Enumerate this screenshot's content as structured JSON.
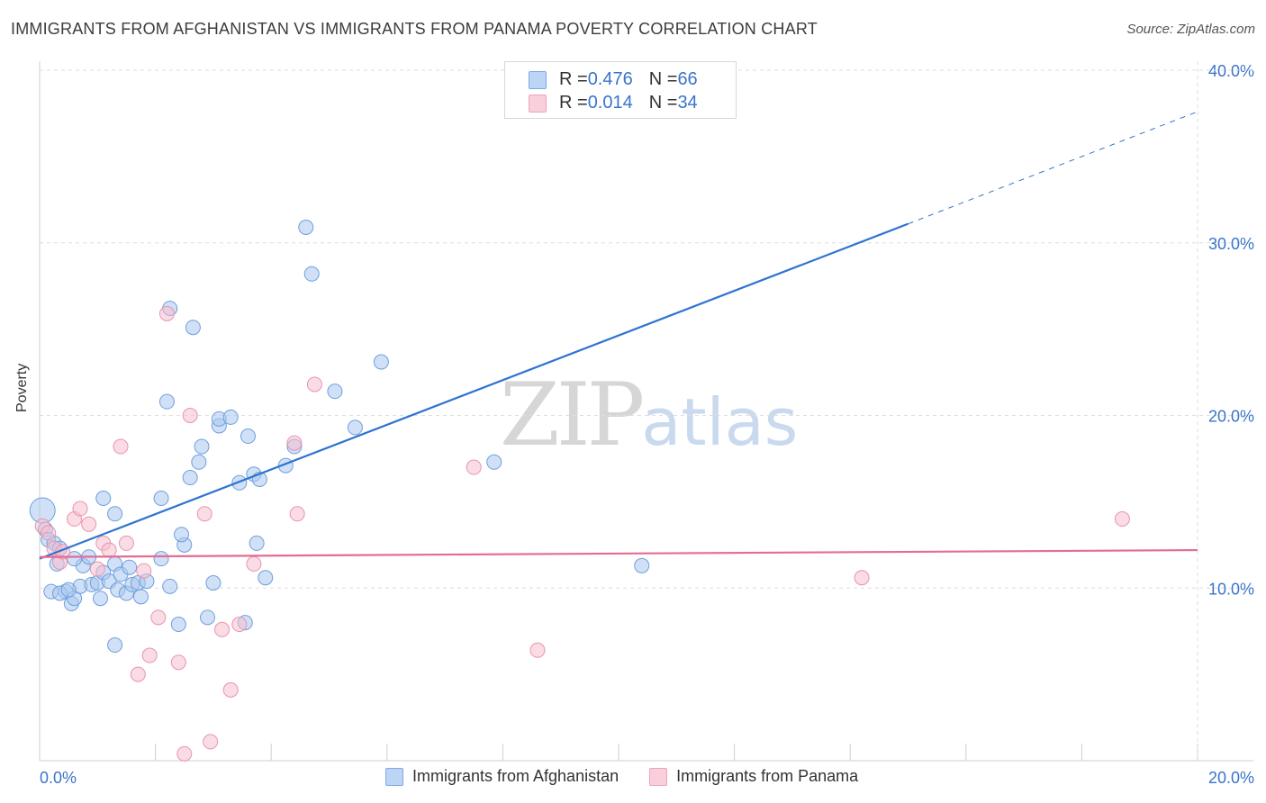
{
  "header": {
    "title": "IMMIGRANTS FROM AFGHANISTAN VS IMMIGRANTS FROM PANAMA POVERTY CORRELATION CHART",
    "source": "Source: ZipAtlas.com"
  },
  "legend": {
    "afghanistan": {
      "r_label": "R = ",
      "r_value": "0.476",
      "n_label": "N = ",
      "n_value": "66"
    },
    "panama": {
      "r_label": "R = ",
      "r_value": "0.014",
      "n_label": "N = ",
      "n_value": "34"
    }
  },
  "watermark": {
    "zip": "ZIP",
    "atlas": "atlas"
  },
  "colors": {
    "afghanistan_fill": "#a9c8f0",
    "afghanistan_stroke": "#6f9fdc",
    "afghanistan_line": "#2f73d0",
    "panama_fill": "#f6bfd0",
    "panama_stroke": "#ea93ae",
    "panama_line": "#e66b95",
    "axis_label": "#3a74c9",
    "grid": "#dedede"
  },
  "chart_data": {
    "type": "scatter",
    "title": "IMMIGRANTS FROM AFGHANISTAN VS IMMIGRANTS FROM PANAMA POVERTY CORRELATION CHART",
    "xlabel": "",
    "ylabel": "Poverty",
    "xlim": [
      0,
      20
    ],
    "ylim": [
      0,
      40
    ],
    "x_tick_labels": [
      "0.0%",
      "20.0%"
    ],
    "y_ticks": [
      10,
      20,
      30,
      40
    ],
    "y_tick_labels": [
      "10.0%",
      "20.0%",
      "30.0%",
      "40.0%"
    ],
    "grid": true,
    "series": [
      {
        "name": "Immigrants from Afghanistan",
        "trend": {
          "x0": 0,
          "y0": 11.7,
          "x1": 15,
          "y1": 31.1,
          "dash_to_x": 20,
          "dash_to_y": 37.6
        },
        "points": [
          [
            0.05,
            14.5
          ],
          [
            0.1,
            13.4
          ],
          [
            0.15,
            12.8
          ],
          [
            0.25,
            12.6
          ],
          [
            0.3,
            11.4
          ],
          [
            0.35,
            12.3
          ],
          [
            0.2,
            9.8
          ],
          [
            0.45,
            9.8
          ],
          [
            0.55,
            9.1
          ],
          [
            0.6,
            9.4
          ],
          [
            0.7,
            10.1
          ],
          [
            0.75,
            11.3
          ],
          [
            0.85,
            11.8
          ],
          [
            0.9,
            10.2
          ],
          [
            1.0,
            10.3
          ],
          [
            1.05,
            9.4
          ],
          [
            1.1,
            10.9
          ],
          [
            1.2,
            10.4
          ],
          [
            1.3,
            11.4
          ],
          [
            1.35,
            9.9
          ],
          [
            1.4,
            10.8
          ],
          [
            1.5,
            9.7
          ],
          [
            1.55,
            11.2
          ],
          [
            1.6,
            10.2
          ],
          [
            1.7,
            10.3
          ],
          [
            1.75,
            9.5
          ],
          [
            1.85,
            10.4
          ],
          [
            1.1,
            15.2
          ],
          [
            1.3,
            14.3
          ],
          [
            2.1,
            11.7
          ],
          [
            2.25,
            10.1
          ],
          [
            2.4,
            7.9
          ],
          [
            2.5,
            12.5
          ],
          [
            2.45,
            13.1
          ],
          [
            2.6,
            16.4
          ],
          [
            2.75,
            17.3
          ],
          [
            2.8,
            18.2
          ],
          [
            2.9,
            8.3
          ],
          [
            3.0,
            10.3
          ],
          [
            3.1,
            19.4
          ],
          [
            3.1,
            19.8
          ],
          [
            3.3,
            19.9
          ],
          [
            3.45,
            16.1
          ],
          [
            3.55,
            8.0
          ],
          [
            3.6,
            18.8
          ],
          [
            3.7,
            16.6
          ],
          [
            3.75,
            12.6
          ],
          [
            3.8,
            16.3
          ],
          [
            3.9,
            10.6
          ],
          [
            4.25,
            17.1
          ],
          [
            4.4,
            18.2
          ],
          [
            4.6,
            30.9
          ],
          [
            4.7,
            28.2
          ],
          [
            2.25,
            26.2
          ],
          [
            2.65,
            25.1
          ],
          [
            2.2,
            20.8
          ],
          [
            2.1,
            15.2
          ],
          [
            5.1,
            21.4
          ],
          [
            5.45,
            19.3
          ],
          [
            5.9,
            23.1
          ],
          [
            7.85,
            17.3
          ],
          [
            10.4,
            11.3
          ],
          [
            1.3,
            6.7
          ],
          [
            0.35,
            9.7
          ],
          [
            0.5,
            9.9
          ],
          [
            0.6,
            11.7
          ]
        ]
      },
      {
        "name": "Immigrants from Panama",
        "trend": {
          "x0": 0,
          "y0": 11.8,
          "x1": 20,
          "y1": 12.2
        },
        "points": [
          [
            0.05,
            13.6
          ],
          [
            0.15,
            13.2
          ],
          [
            0.25,
            12.3
          ],
          [
            0.35,
            11.5
          ],
          [
            0.4,
            12.1
          ],
          [
            0.6,
            14.0
          ],
          [
            0.7,
            14.6
          ],
          [
            0.85,
            13.7
          ],
          [
            1.0,
            11.1
          ],
          [
            1.1,
            12.6
          ],
          [
            1.2,
            12.2
          ],
          [
            1.4,
            18.2
          ],
          [
            1.5,
            12.6
          ],
          [
            1.7,
            5.0
          ],
          [
            1.8,
            11.0
          ],
          [
            1.9,
            6.1
          ],
          [
            2.05,
            8.3
          ],
          [
            2.2,
            25.9
          ],
          [
            2.4,
            5.7
          ],
          [
            2.5,
            0.4
          ],
          [
            2.6,
            20.0
          ],
          [
            2.85,
            14.3
          ],
          [
            2.95,
            1.1
          ],
          [
            3.15,
            7.6
          ],
          [
            3.3,
            4.1
          ],
          [
            3.45,
            7.9
          ],
          [
            3.7,
            11.4
          ],
          [
            4.4,
            18.4
          ],
          [
            4.45,
            14.3
          ],
          [
            4.75,
            21.8
          ],
          [
            7.5,
            17.0
          ],
          [
            8.6,
            6.4
          ],
          [
            14.2,
            10.6
          ],
          [
            18.7,
            14.0
          ]
        ]
      }
    ]
  }
}
